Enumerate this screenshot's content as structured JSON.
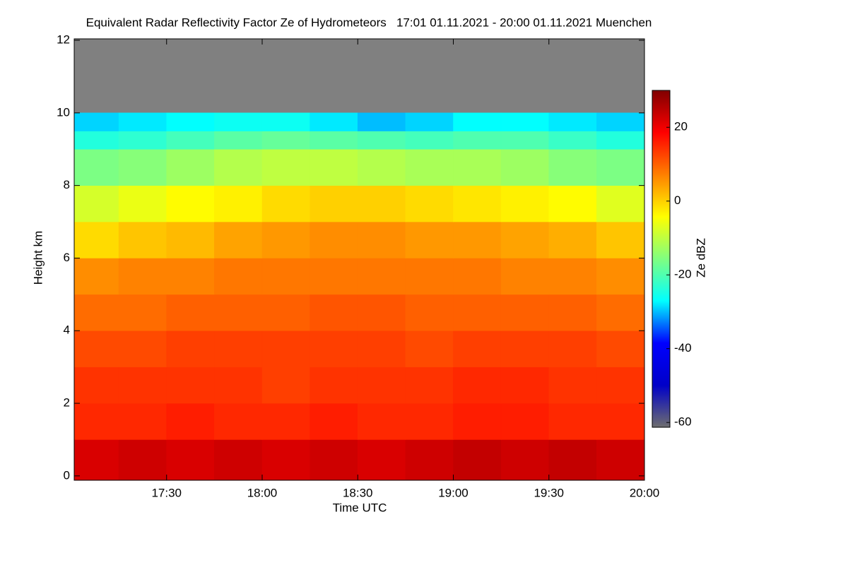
{
  "chart_data": {
    "type": "heatmap",
    "title": "Equivalent Radar Reflectivity Factor Ze of Hydrometeors   17:01 01.11.2021 - 20:00 01.11.2021 Muenchen",
    "x_label": "Time UTC",
    "y_label": "Height km",
    "colorbar_label": "Ze dBZ",
    "x_bins": [
      17.0167,
      17.25,
      17.5,
      17.75,
      18.0,
      18.25,
      18.5,
      18.75,
      19.0,
      19.25,
      19.5,
      19.75,
      20.0
    ],
    "y_bins": [
      -0.12,
      1,
      2,
      3,
      4,
      5,
      6,
      7,
      8,
      9,
      9.5,
      10,
      12.04
    ],
    "values": [
      [
        22,
        23,
        22,
        23,
        22,
        23,
        22,
        23,
        24,
        23,
        24,
        23
      ],
      [
        15,
        15,
        16,
        15,
        15,
        16,
        15,
        15,
        16,
        16,
        15,
        15
      ],
      [
        14,
        14,
        14,
        14,
        13,
        14,
        14,
        14,
        15,
        15,
        14,
        14
      ],
      [
        12,
        12,
        13,
        13,
        13,
        13,
        13,
        12,
        13,
        13,
        13,
        12
      ],
      [
        9,
        9,
        10,
        10,
        10,
        11,
        11,
        10,
        10,
        10,
        10,
        9
      ],
      [
        6,
        7,
        7,
        8,
        8,
        8,
        8,
        8,
        8,
        7,
        7,
        6
      ],
      [
        -1,
        1,
        2,
        4,
        5,
        6,
        6,
        5,
        5,
        4,
        3,
        1
      ],
      [
        -8,
        -6,
        -4,
        -3,
        -1,
        0,
        0,
        -1,
        -2,
        -3,
        -4,
        -7
      ],
      [
        -16,
        -15,
        -13,
        -11,
        -10,
        -10,
        -11,
        -12,
        -12,
        -13,
        -15,
        -16
      ],
      [
        -24,
        -23,
        -21,
        -19,
        -18,
        -19,
        -20,
        -21,
        -20,
        -20,
        -22,
        -24
      ],
      [
        -29,
        -28,
        -27,
        -26,
        -26,
        -28,
        -30,
        -29,
        -27,
        -27,
        -28,
        -29
      ],
      [
        null,
        null,
        null,
        null,
        null,
        null,
        null,
        null,
        null,
        null,
        null,
        null
      ]
    ],
    "xlim": [
      17.0167,
      20.0
    ],
    "ylim": [
      -0.12,
      12.04
    ],
    "xticks": [
      {
        "value": 17.5,
        "label": "17:30"
      },
      {
        "value": 18.0,
        "label": "18:00"
      },
      {
        "value": 18.5,
        "label": "18:30"
      },
      {
        "value": 19.0,
        "label": "19:00"
      },
      {
        "value": 19.5,
        "label": "19:30"
      },
      {
        "value": 20.0,
        "label": "20:00"
      }
    ],
    "yticks": [
      0,
      2,
      4,
      6,
      8,
      10,
      12
    ],
    "clim": [
      -61.3,
      30
    ],
    "cticks": [
      -60,
      -40,
      -20,
      0,
      20
    ],
    "colormap": [
      "#6e6e6e",
      "#0000c8",
      "#0000ff",
      "#00ffff",
      "#80ff80",
      "#ffff00",
      "#ff8000",
      "#ff0000",
      "#800000"
    ],
    "background": "#808080"
  }
}
